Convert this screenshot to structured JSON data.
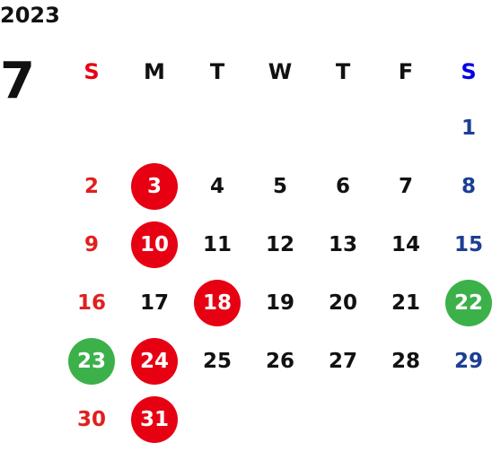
{
  "year": "2023",
  "month": "7",
  "weekdays": [
    "S",
    "M",
    "T",
    "W",
    "T",
    "F",
    "S"
  ],
  "weeks": [
    [
      "",
      "",
      "",
      "",
      "",
      "",
      "1"
    ],
    [
      "2",
      "3",
      "4",
      "5",
      "6",
      "7",
      "8"
    ],
    [
      "9",
      "10",
      "11",
      "12",
      "13",
      "14",
      "15"
    ],
    [
      "16",
      "17",
      "18",
      "19",
      "20",
      "21",
      "22"
    ],
    [
      "23",
      "24",
      "25",
      "26",
      "27",
      "28",
      "29"
    ],
    [
      "30",
      "31",
      "",
      "",
      "",
      "",
      ""
    ]
  ],
  "highlights": {
    "3": "red",
    "10": "red",
    "18": "red",
    "24": "red",
    "31": "red",
    "22": "green",
    "23": "green"
  },
  "colors": {
    "sunday_text": "#e0201e",
    "saturday_text": "#1c3f94",
    "sunday_header": "#e60012",
    "saturday_header": "#0000e6",
    "highlight_red": "#e60012",
    "highlight_green": "#3cb14a"
  }
}
